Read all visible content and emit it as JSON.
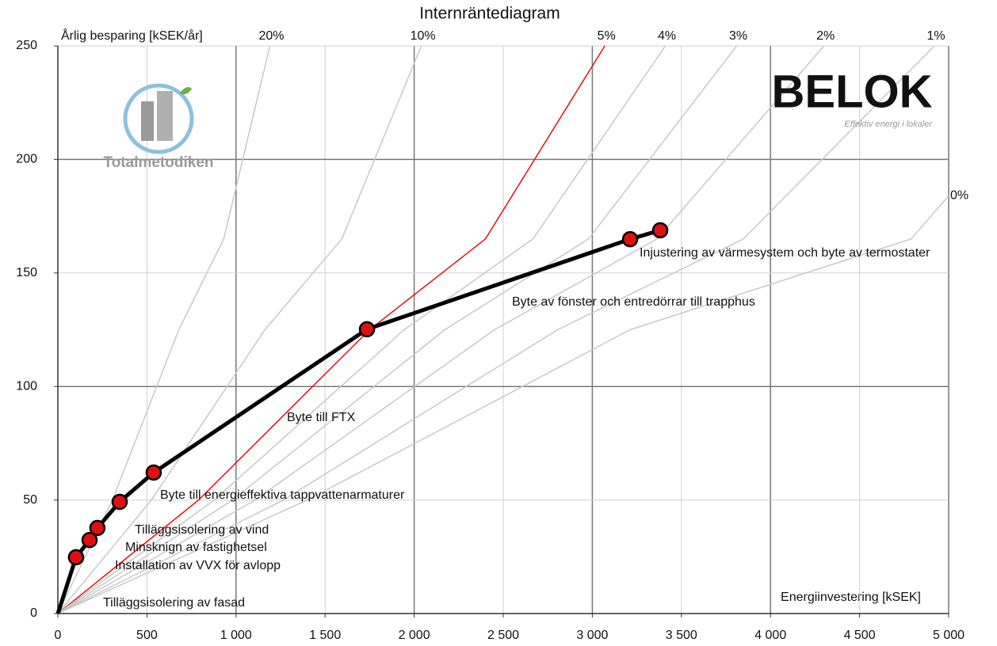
{
  "chart_data": {
    "type": "line",
    "title": "Internräntediagram",
    "ylabel": "Årlig besparing [kSEK/år]",
    "xlabel": "Energiinvestering [kSEK]",
    "xlim": [
      0,
      5000
    ],
    "ylim": [
      0,
      250
    ],
    "xticks": [
      0,
      500,
      {
        "value": 1000,
        "label": "1 000"
      },
      {
        "value": 1500,
        "label": "1 500"
      },
      {
        "value": 2000,
        "label": "2 000"
      },
      {
        "value": 2500,
        "label": "2 500"
      },
      {
        "value": 3000,
        "label": "3 000"
      },
      {
        "value": 3500,
        "label": "3 500"
      },
      {
        "value": 4000,
        "label": "4 000"
      },
      {
        "value": 4500,
        "label": "4 500"
      },
      {
        "value": 5000,
        "label": "5 000"
      }
    ],
    "yticks": [
      0,
      50,
      100,
      150,
      200,
      250
    ],
    "grid": true,
    "series": [
      {
        "name": "20%",
        "color": "#c8c8c8",
        "x": [
          0,
          306,
          679,
          931,
          1190
        ],
        "values": [
          0,
          50,
          125,
          165,
          250
        ]
      },
      {
        "name": "10%",
        "color": "#c8c8c8",
        "x": [
          0,
          525,
          1162,
          1594,
          2040
        ],
        "values": [
          0,
          50,
          125,
          165,
          250
        ]
      },
      {
        "name": "5%",
        "color": "#e01010",
        "x": [
          0,
          790,
          1750,
          2400,
          3070
        ],
        "values": [
          0,
          50,
          125,
          165,
          250
        ]
      },
      {
        "name": "4%",
        "color": "#c8c8c8",
        "x": [
          0,
          878,
          1944,
          2667,
          3410
        ],
        "values": [
          0,
          50,
          125,
          165,
          250
        ]
      },
      {
        "name": "3%",
        "color": "#c8c8c8",
        "x": [
          0,
          980,
          2172,
          2979,
          3810
        ],
        "values": [
          0,
          50,
          125,
          165,
          250
        ]
      },
      {
        "name": "2%",
        "color": "#c8c8c8",
        "x": [
          0,
          1107,
          2451,
          3363,
          4300
        ],
        "values": [
          0,
          50,
          125,
          165,
          250
        ]
      },
      {
        "name": "1%",
        "color": "#c8c8c8",
        "x": [
          0,
          1266,
          2805,
          3848,
          4920
        ],
        "values": [
          0,
          50,
          125,
          165,
          250
        ]
      },
      {
        "name": "0%",
        "color": "#c8c8c8",
        "x": [
          0,
          1400,
          3212,
          4790,
          5000
        ],
        "values": [
          0,
          50,
          125,
          165,
          184
        ]
      },
      {
        "color": "#000000",
        "x": [
          0,
          102,
          178,
          222,
          347,
          538,
          1735,
          3212,
          3381
        ],
        "values": [
          0,
          24.8,
          32.4,
          37.7,
          49.2,
          62.1,
          125.2,
          164.9,
          168.8
        ]
      }
    ],
    "point_color": "#e01010",
    "annotations": [
      "Tilläggsisolering av fasad",
      "Installation av VVX för avlopp",
      "Minsknign av fastighetsel",
      "Tilläggsisolering av vind",
      "Byte till energieffektiva tappvattenarmaturer",
      "Byte till FTX",
      "Byte av fönster och entredörrar till trapphus",
      "Injustering av värmesystem och byte av termostater"
    ],
    "logos": {
      "belok": "BELOK",
      "belok_tagline": "Effektiv energi i lokaler",
      "totalmetodiken": "Totalmetodiken"
    }
  }
}
